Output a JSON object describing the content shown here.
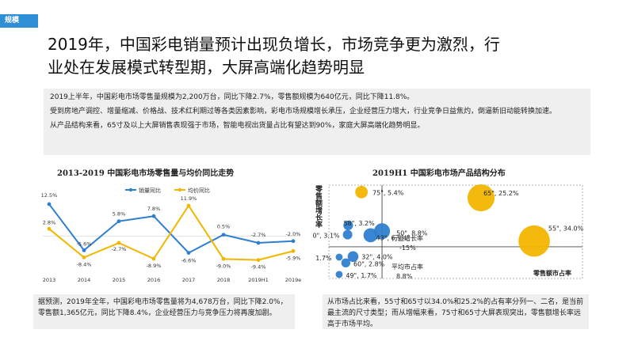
{
  "tag": "规模",
  "title_lines": [
    "2019年，中国彩电销量预计出现负增长，市场竞争更为激烈，行",
    "业处在发展模式转型期，大屏高端化趋势明显"
  ],
  "summary": {
    "p1": "2019上半年，中国彩电市场零售量规模为2,200万台，同比下降2.7%，零售额规模为640亿元，同比下降11.8%。",
    "p2": "受到房地产调控、增量缩减、价格战、技术红利期过等各类因素影响，彩电市场规模增长承压，企业经营压力增大，行业竞争日益焦灼，倒逼新旧动能转换加速。",
    "p3": "从产品结构来看，65寸及以上大屏销售表现强于市场，智能电视出货量占比有望达到90%，家庭大屏高端化趋势明显。"
  },
  "left_chart": {
    "title": "2013-2019  中国彩电市场零售量与均价同比走势"
  },
  "right_chart": {
    "title": "2019H1  中国彩电市场产品结构分布",
    "y_axis_label": "零售额增长率",
    "x_axis_label": "零售额市占率",
    "ref_y_label": "行业增长率",
    "ref_y_value": "-15%",
    "ref_x_label": "平均市占率",
    "ref_x_value": "8.8%"
  },
  "left_note": "据预测，2019年全年，中国彩电市场零售量将为4,678万台，同比下降2.0%，零售额1,365亿元，同比下降8.4%，企业经营压力与竞争压力将再度加剧。",
  "right_note": "从市场占比来看，55寸和65寸以34.0%和25.2%的占有率分列一、二名，是当前最主流的尺寸类型；而从增幅来看，75寸和65寸大屏表现突出，零售额增长率远高于市场平均。",
  "colors": {
    "blue": "#2f7fd0",
    "gold": "#f2b600",
    "tag": "#2f8fd6",
    "panel": "#efefef"
  },
  "chart_data": [
    {
      "type": "line",
      "title": "2013-2019  中国彩电市场零售量与均价同比走势",
      "categories": [
        "2013",
        "2014",
        "2015",
        "2016",
        "2017",
        "2018",
        "2019H1",
        "2019e"
      ],
      "series": [
        {
          "name": "销量同比",
          "color": "#2f7fd0",
          "values": [
            12.5,
            -5.6,
            5.8,
            7.8,
            -6.6,
            0.5,
            -2.7,
            -2.0
          ],
          "labels": [
            "12.5%",
            "-5.6%",
            "5.8%",
            "7.8%",
            "-6.6%",
            "0.5%",
            "-2.7%",
            "-2.0%"
          ]
        },
        {
          "name": "均价同比",
          "color": "#f2b600",
          "values": [
            2.8,
            -8.4,
            -2.7,
            -8.9,
            11.9,
            -9.0,
            -9.4,
            -5.9
          ],
          "labels": [
            "2.8%",
            "-8.4%",
            "-2.7%",
            "-8.9%",
            "11.9%",
            "-9.0%",
            "-9.4%",
            "-5.9%"
          ]
        }
      ],
      "ylim": [
        -12,
        15
      ],
      "legend": "top"
    },
    {
      "type": "scatter",
      "title": "2019H1  中国彩电市场产品结构分布",
      "xlabel": "零售额市占率",
      "ylabel": "零售额增长率",
      "points": [
        {
          "label": "75\", 5.4%",
          "share": 5.4,
          "growth": 80,
          "color": "#f2b600"
        },
        {
          "label": "65\", 25.2%",
          "share": 25.2,
          "growth": 70,
          "color": "#f2b600"
        },
        {
          "label": "55\", 34.0%",
          "share": 34.0,
          "growth": -5,
          "color": "#f2b600"
        },
        {
          "label": "58\", 3.2%",
          "share": 3.2,
          "growth": 22,
          "color": "#2f7fd0"
        },
        {
          "label": "50\", 8.8%",
          "share": 8.8,
          "growth": 12,
          "color": "#2f7fd0"
        },
        {
          "label": "43\", 6.9%",
          "share": 6.9,
          "growth": 5,
          "color": "#2f7fd0"
        },
        {
          "label": "40\", 3.1%",
          "share": 3.1,
          "growth": 6,
          "color": "#2f7fd0"
        },
        {
          "label": "70\", 1.7%",
          "share": 1.7,
          "growth": -33,
          "color": "#2f7fd0"
        },
        {
          "label": "32\", 4.0%",
          "share": 4.0,
          "growth": -32,
          "color": "#2f7fd0"
        },
        {
          "label": "60\", 2.8%",
          "share": 2.8,
          "growth": -43,
          "color": "#2f7fd0"
        },
        {
          "label": "49\", 1.7%",
          "share": 1.7,
          "growth": -63,
          "color": "#2f7fd0"
        }
      ],
      "ref_x": 8.8,
      "ref_y": -15
    }
  ]
}
